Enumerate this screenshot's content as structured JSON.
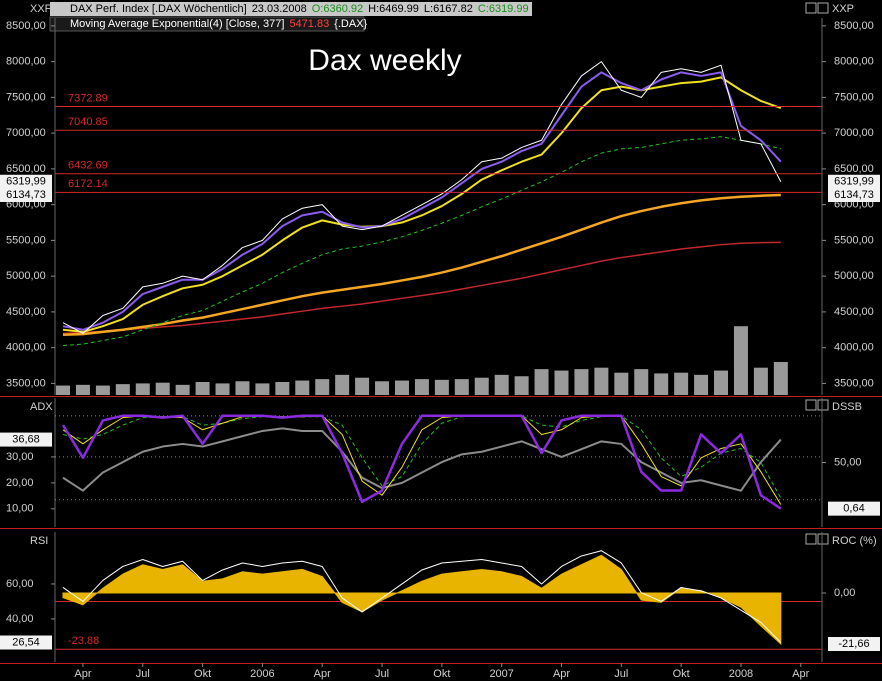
{
  "header": {
    "source_left": "XXP",
    "source_right": "XXP",
    "instrument": "DAX Perf. Index [.DAX  Wöchentlich]",
    "date": "23.03.2008",
    "open": "O:6360.92",
    "high": "H:6469.99",
    "low": "L:6167.82",
    "close": "C:6319.99",
    "indicator": "Moving Average Exponential(4) [Close, 377]",
    "indicator_value": "5471.83",
    "indicator_source": "{.DAX}"
  },
  "chart_data": [
    {
      "type": "line",
      "title": "Dax weekly",
      "right_axis_mirror": true,
      "categories": [
        null,
        "Apr",
        null,
        null,
        "Jul",
        null,
        null,
        "Okt",
        null,
        null,
        "2006",
        null,
        null,
        "Apr",
        null,
        null,
        "Jul",
        null,
        null,
        "Okt",
        null,
        null,
        "2007",
        null,
        null,
        "Apr",
        null,
        null,
        "Jul",
        null,
        null,
        "Okt",
        null,
        null,
        "2008",
        null,
        null,
        "Apr"
      ],
      "ylim": [
        3338,
        8610
      ],
      "yticks": [
        {
          "value": 3500,
          "label": "3500,00"
        },
        {
          "value": 4000,
          "label": "4000,00"
        },
        {
          "value": 4500,
          "label": "4500,00"
        },
        {
          "value": 5000,
          "label": "5000,00"
        },
        {
          "value": 5500,
          "label": "5500,00"
        },
        {
          "value": 6000,
          "label": "6000,00"
        },
        {
          "value": 6500,
          "label": "6500,00"
        },
        {
          "value": 7000,
          "label": "7000,00"
        },
        {
          "value": 7500,
          "label": "7500,00"
        },
        {
          "value": 8000,
          "label": "8000,00"
        },
        {
          "value": 8500,
          "label": "8500,00"
        }
      ],
      "levels": [
        7372.89,
        7040.85,
        6432.69,
        6172.14
      ],
      "level_color": "#d42a2a",
      "last_labels": [
        {
          "value": 6319.99,
          "label": "6319,99"
        },
        {
          "value": 6134.73,
          "label": "6134,73"
        }
      ],
      "series": [
        {
          "style": "bar",
          "color": "#9a9a9a",
          "values": [
            3470,
            3480,
            3470,
            3490,
            3500,
            3510,
            3480,
            3520,
            3500,
            3530,
            3500,
            3520,
            3540,
            3560,
            3620,
            3580,
            3530,
            3540,
            3560,
            3550,
            3560,
            3580,
            3620,
            3600,
            3700,
            3680,
            3700,
            3720,
            3650,
            3700,
            3640,
            3650,
            3620,
            3680,
            4300,
            3720,
            3800,
            null
          ]
        },
        {
          "style": "line",
          "color": "#c0282c",
          "width": 1.5,
          "values": [
            4200,
            4210,
            4230,
            4250,
            4270,
            4290,
            4310,
            4340,
            4370,
            4400,
            4430,
            4470,
            4510,
            4550,
            4580,
            4610,
            4650,
            4690,
            4730,
            4770,
            4820,
            4870,
            4920,
            4970,
            5030,
            5090,
            5150,
            5210,
            5260,
            5300,
            5340,
            5380,
            5410,
            5440,
            5460,
            5468,
            5471.83,
            null
          ]
        },
        {
          "style": "line",
          "color": "#f5a623",
          "width": 2.5,
          "values": [
            4180,
            4190,
            4220,
            4250,
            4290,
            4330,
            4380,
            4420,
            4480,
            4540,
            4600,
            4660,
            4720,
            4770,
            4810,
            4850,
            4890,
            4940,
            4990,
            5050,
            5120,
            5200,
            5280,
            5370,
            5460,
            5550,
            5650,
            5750,
            5840,
            5910,
            5970,
            6020,
            6060,
            6090,
            6110,
            6125,
            6134.73,
            null
          ]
        },
        {
          "style": "line",
          "color": "#22c022",
          "width": 1,
          "dashed": true,
          "values": [
            4030,
            4050,
            4100,
            4150,
            4250,
            4350,
            4450,
            4520,
            4650,
            4780,
            4900,
            5050,
            5180,
            5300,
            5380,
            5420,
            5480,
            5550,
            5640,
            5740,
            5850,
            5970,
            6080,
            6200,
            6320,
            6450,
            6600,
            6720,
            6780,
            6800,
            6850,
            6900,
            6920,
            6950,
            6900,
            6850,
            6780,
            null
          ]
        },
        {
          "style": "line",
          "color": "#f0e020",
          "width": 2,
          "values": [
            4250,
            4220,
            4300,
            4400,
            4600,
            4720,
            4830,
            4880,
            5000,
            5150,
            5300,
            5500,
            5680,
            5780,
            5720,
            5690,
            5700,
            5750,
            5850,
            5980,
            6150,
            6350,
            6480,
            6600,
            6700,
            7000,
            7350,
            7600,
            7650,
            7600,
            7650,
            7700,
            7720,
            7780,
            7600,
            7450,
            7350,
            null
          ]
        },
        {
          "style": "line",
          "color": "#8a5cf0",
          "width": 2,
          "values": [
            4300,
            4250,
            4350,
            4500,
            4750,
            4850,
            4950,
            4950,
            5100,
            5300,
            5450,
            5700,
            5850,
            5900,
            5750,
            5680,
            5700,
            5800,
            5950,
            6100,
            6300,
            6500,
            6600,
            6750,
            6850,
            7250,
            7650,
            7850,
            7700,
            7600,
            7750,
            7850,
            7800,
            7850,
            7100,
            6900,
            6600,
            null
          ]
        },
        {
          "style": "line",
          "color": "#ffffff",
          "width": 1,
          "values": [
            4350,
            4200,
            4450,
            4550,
            4850,
            4900,
            5000,
            4950,
            5150,
            5400,
            5500,
            5800,
            5950,
            6000,
            5700,
            5650,
            5700,
            5850,
            6000,
            6150,
            6350,
            6600,
            6650,
            6800,
            6900,
            7400,
            7800,
            8000,
            7600,
            7500,
            7850,
            7900,
            7850,
            7950,
            6900,
            6850,
            6319.99,
            null
          ]
        }
      ]
    },
    {
      "type": "line",
      "y_label": "ADX",
      "y2_label": "DSSB",
      "ylim": [
        3,
        52.7
      ],
      "yticks": [
        {
          "value": 10,
          "label": "10,00"
        },
        {
          "value": 20,
          "label": "20,00"
        },
        {
          "value": 30,
          "label": "30,00"
        }
      ],
      "y2lim": [
        -19,
        119
      ],
      "y2ticks": [
        {
          "value": 50,
          "label": "50,00"
        }
      ],
      "guides": [
        45.8,
        30,
        13.5
      ],
      "guide_color": "#888",
      "guide_dotted": true,
      "last_labels": [
        {
          "value": 36.68,
          "label": "36,68",
          "axis": "y"
        },
        {
          "value": 0.64,
          "label": "0,64",
          "axis": "y2"
        }
      ],
      "series": [
        {
          "style": "line",
          "color": "#8c8c8c",
          "width": 2,
          "values": [
            22,
            17,
            24,
            28,
            32,
            34,
            35,
            34,
            36,
            38,
            40,
            41,
            40,
            40,
            32,
            22,
            18,
            20,
            24,
            28,
            31,
            32,
            34,
            36,
            33,
            30,
            33,
            36,
            35,
            28,
            24,
            20,
            21,
            19,
            17,
            28,
            36.68,
            null
          ]
        },
        {
          "style": "line",
          "axis": "y2",
          "color": "#22c022",
          "width": 1,
          "dashed": true,
          "values": [
            80,
            75,
            80,
            90,
            98,
            99,
            99,
            90,
            92,
            97,
            99,
            99,
            99,
            99,
            90,
            55,
            25,
            35,
            70,
            92,
            99,
            100,
            100,
            100,
            90,
            88,
            95,
            99,
            100,
            85,
            55,
            35,
            45,
            60,
            65,
            50,
            12,
            null
          ]
        },
        {
          "style": "line",
          "axis": "y2",
          "color": "#f0e020",
          "width": 1,
          "values": [
            85,
            70,
            85,
            98,
            100,
            99,
            98,
            85,
            92,
            99,
            100,
            99,
            99,
            100,
            80,
            30,
            15,
            45,
            85,
            98,
            100,
            100,
            100,
            100,
            80,
            85,
            98,
            100,
            100,
            70,
            35,
            25,
            55,
            65,
            70,
            40,
            5,
            null
          ]
        },
        {
          "style": "line",
          "axis": "y2",
          "color": "#8a2be2",
          "width": 2.5,
          "values": [
            90,
            55,
            95,
            100,
            100,
            98,
            100,
            70,
            100,
            100,
            100,
            98,
            100,
            100,
            60,
            8,
            20,
            70,
            100,
            100,
            100,
            100,
            100,
            100,
            60,
            95,
            100,
            100,
            100,
            40,
            20,
            20,
            80,
            60,
            80,
            15,
            0.64,
            null
          ]
        }
      ]
    },
    {
      "type": "line",
      "y_label": "RSI",
      "y2_label": "ROC (%)",
      "ylim": [
        15.4,
        89.7
      ],
      "yticks": [
        {
          "value": 40,
          "label": "40,00"
        },
        {
          "value": 60,
          "label": "60,00"
        }
      ],
      "y2lim": [
        -29.3,
        25.9
      ],
      "y2ticks": [
        {
          "value": 0,
          "label": "0,00"
        }
      ],
      "guides": [
        50
      ],
      "guide_color": "#d42a2a",
      "guide_dotted": false,
      "levels": [
        -23.88
      ],
      "levels_axis": "y2",
      "level_color": "#d42a2a",
      "last_labels": [
        {
          "value": 26.54,
          "label": "26,54",
          "axis": "y"
        },
        {
          "value": -21.66,
          "label": "-21,66",
          "axis": "y2"
        }
      ],
      "series": [
        {
          "style": "area",
          "axis": "y2",
          "color": "#e8b400",
          "values": [
            -2,
            -5,
            2,
            8,
            12,
            10,
            12,
            5,
            6,
            9,
            8,
            9,
            10,
            7,
            -4,
            -8,
            -3,
            1,
            5,
            8,
            9,
            10,
            9,
            7,
            2,
            8,
            12,
            16,
            10,
            -3,
            -4,
            2,
            1,
            -2,
            -6,
            -14,
            -21.66,
            null
          ]
        },
        {
          "style": "line",
          "color": "#ffffff",
          "width": 1,
          "values": [
            58,
            50,
            62,
            70,
            74,
            70,
            73,
            62,
            68,
            72,
            70,
            72,
            73,
            70,
            52,
            44,
            52,
            60,
            68,
            72,
            73,
            74,
            72,
            70,
            60,
            70,
            76,
            79,
            72,
            55,
            50,
            58,
            56,
            52,
            45,
            38,
            26.54,
            null
          ]
        }
      ]
    }
  ]
}
